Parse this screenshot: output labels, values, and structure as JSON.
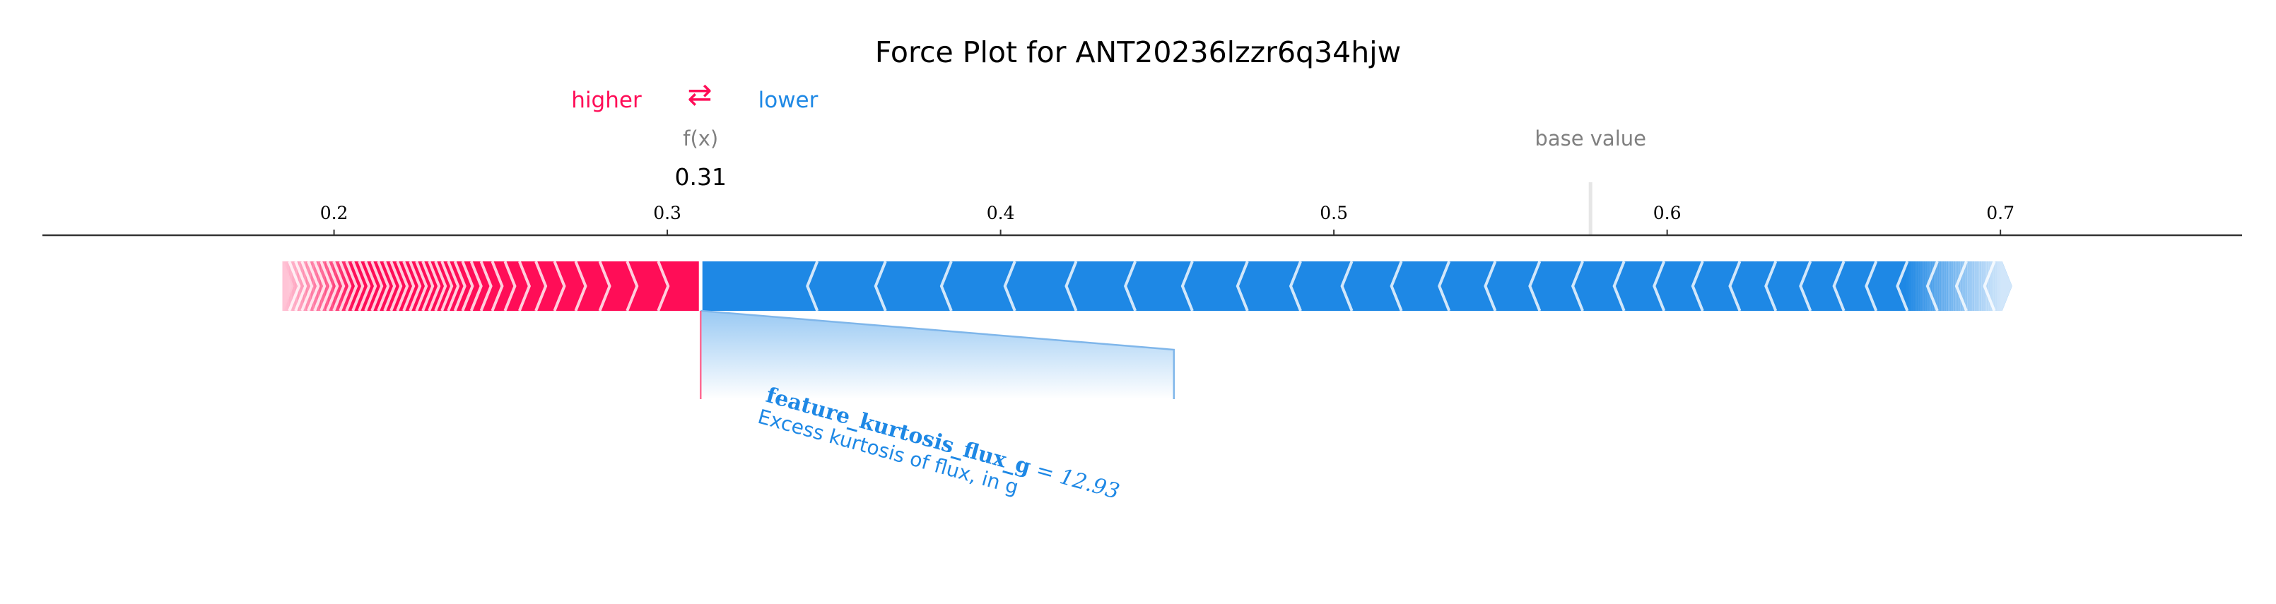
{
  "chart_data": {
    "type": "force",
    "title": "Force Plot for ANT20236lzzr6q34hjw",
    "legend": {
      "higher": "higher",
      "lower": "lower",
      "arrow_glyph": "⇄"
    },
    "fx_label": "f(x)",
    "output_value": 0.31,
    "output_value_text": "0.31",
    "base_value": 0.577,
    "base_value_label": "base value",
    "xlim": [
      0.1125,
      0.7725
    ],
    "ticks": [
      {
        "value": 0.2,
        "label": "0.2"
      },
      {
        "value": 0.3,
        "label": "0.3"
      },
      {
        "value": 0.4,
        "label": "0.4"
      },
      {
        "value": 0.5,
        "label": "0.5"
      },
      {
        "value": 0.6,
        "label": "0.6"
      },
      {
        "value": 0.7,
        "label": "0.7"
      }
    ],
    "positive_extent": [
      0.1845,
      0.31
    ],
    "negative_extent": [
      0.31,
      0.7035
    ],
    "feature_labels": [
      {
        "name": "feature_kurtosis_flux_g",
        "value_text": "= 12.93",
        "description": "Excess kurtosis of flux, in g",
        "effect": "lower",
        "start": 0.31,
        "end": 0.452
      }
    ],
    "colors": {
      "positive": "#ff0d57",
      "positive_light": "#ffc3d5",
      "negative": "#1e88e5",
      "negative_light": "#d1e6fa",
      "axis": "#333333",
      "muted_text": "#808080",
      "base_line": "#e6e6e6"
    }
  }
}
